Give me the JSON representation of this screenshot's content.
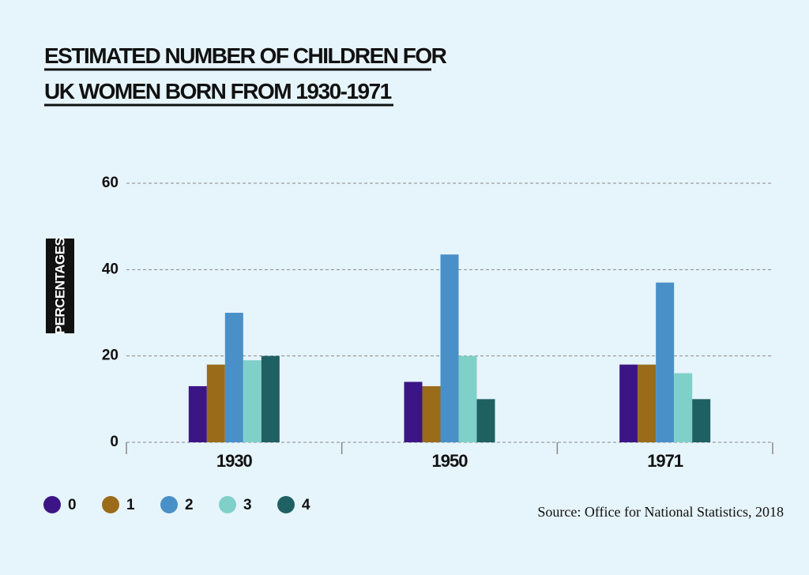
{
  "chart_data": {
    "type": "bar",
    "title": [
      "ESTIMATED NUMBER OF CHILDREN FOR",
      "UK WOMEN BORN FROM 1930-1971"
    ],
    "y_label": "PERCENTAGES",
    "source": "Source: Office for National Statistics, 2018",
    "categories": [
      "1930",
      "1950",
      "1971"
    ],
    "series": [
      {
        "name": "0",
        "color": "#3b1585",
        "values": [
          13,
          14,
          18
        ]
      },
      {
        "name": "1",
        "color": "#9a6c1a",
        "values": [
          18,
          13,
          18
        ]
      },
      {
        "name": "2",
        "color": "#4a90c8",
        "values": [
          30,
          43.5,
          37
        ]
      },
      {
        "name": "3",
        "color": "#7fd0c8",
        "values": [
          19,
          20,
          16
        ]
      },
      {
        "name": "4",
        "color": "#1f6063",
        "values": [
          20,
          10,
          10
        ]
      }
    ],
    "ylim": [
      0,
      60
    ],
    "yticks": [
      0,
      20,
      40,
      60
    ],
    "grid": true
  }
}
